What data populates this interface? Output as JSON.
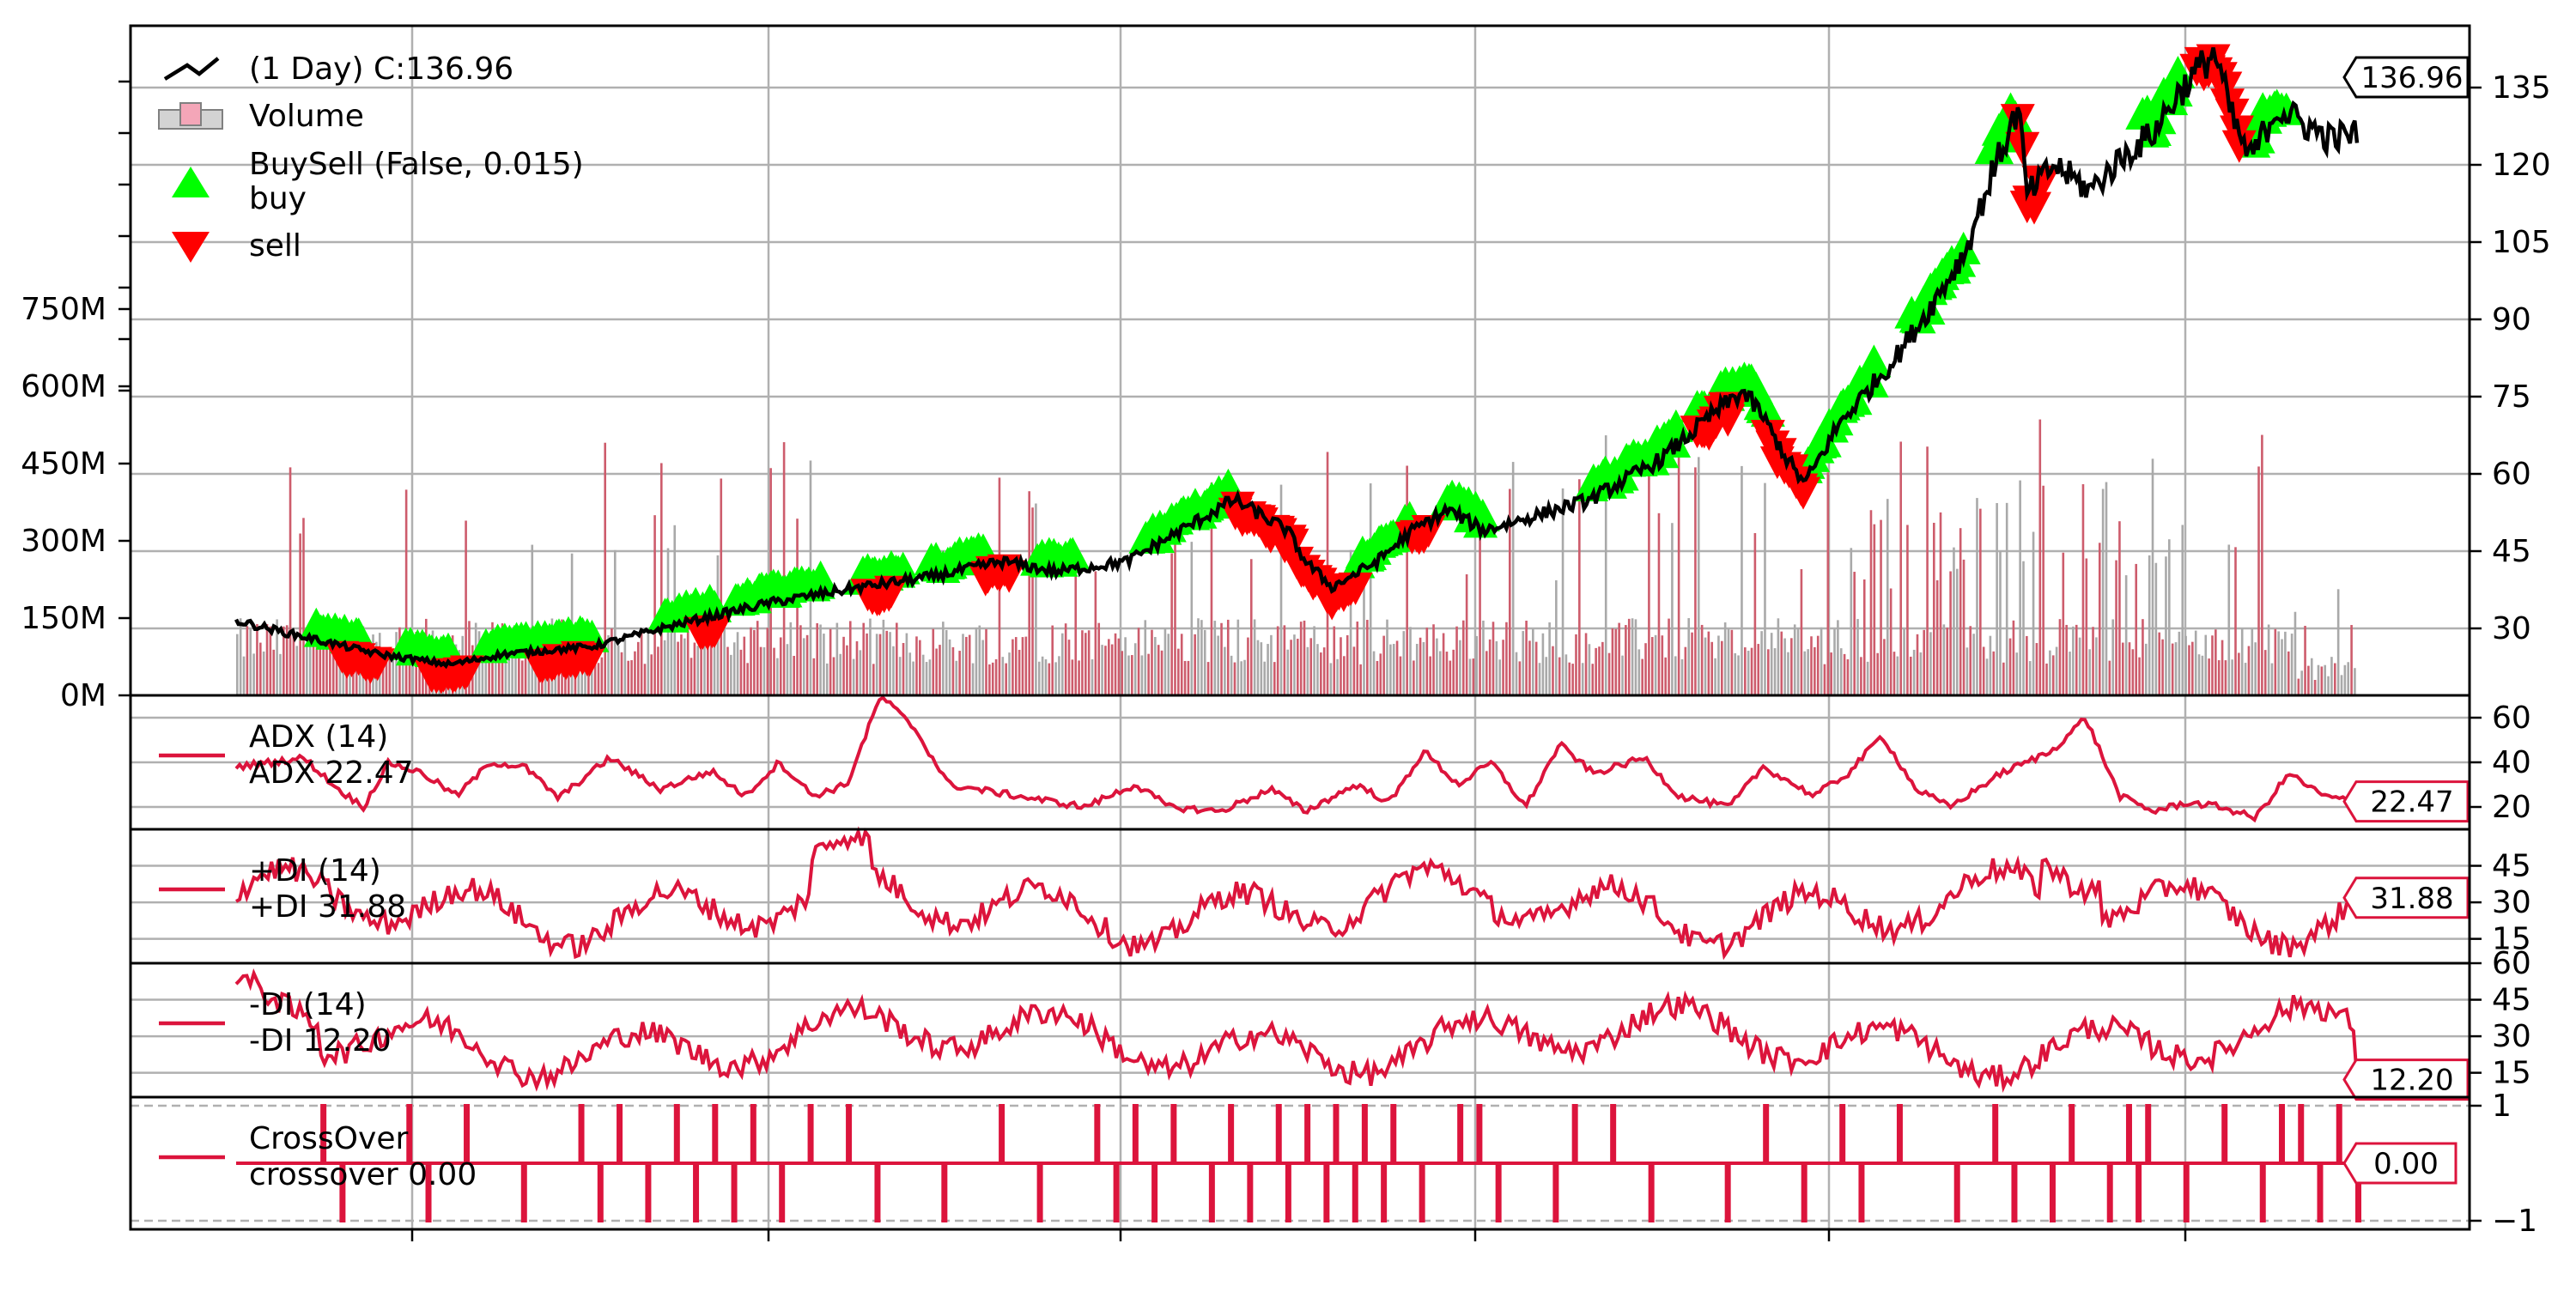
{
  "chart_data": [
    {
      "type": "line",
      "panel": "price",
      "title": "",
      "legend": [
        {
          "icon": "line-swatch-icon",
          "label": "(1 Day) C:136.96"
        },
        {
          "icon": "bar-swatch-icon",
          "label": "Volume"
        },
        {
          "icon": "",
          "label": "BuySell (False, 0.015)"
        },
        {
          "icon": "up-triangle-icon",
          "label": "buy"
        },
        {
          "icon": "down-triangle-icon",
          "label": "sell"
        }
      ],
      "legend_position": "top-left",
      "last_value_label": "136.96",
      "ylim": [
        17,
        147
      ],
      "y_ticks": [
        30,
        45,
        60,
        75,
        90,
        105,
        120,
        135
      ],
      "volume_ylim": [
        0,
        1300
      ],
      "volume_ticks": [
        "0M",
        "150M",
        "300M",
        "450M",
        "600M",
        "750M"
      ],
      "volume_tick_values": [
        0,
        150,
        300,
        450,
        600,
        750
      ],
      "x_range": [
        0,
        1000
      ],
      "close_anchors": [
        {
          "x": 0,
          "y": 31.5
        },
        {
          "x": 30,
          "y": 29
        },
        {
          "x": 80,
          "y": 25
        },
        {
          "x": 120,
          "y": 23
        },
        {
          "x": 150,
          "y": 25
        },
        {
          "x": 200,
          "y": 26.5
        },
        {
          "x": 250,
          "y": 31
        },
        {
          "x": 300,
          "y": 35
        },
        {
          "x": 350,
          "y": 38
        },
        {
          "x": 390,
          "y": 40
        },
        {
          "x": 430,
          "y": 43
        },
        {
          "x": 460,
          "y": 41
        },
        {
          "x": 500,
          "y": 43
        },
        {
          "x": 530,
          "y": 49
        },
        {
          "x": 550,
          "y": 53
        },
        {
          "x": 560,
          "y": 55
        },
        {
          "x": 590,
          "y": 49
        },
        {
          "x": 600,
          "y": 43
        },
        {
          "x": 615,
          "y": 38
        },
        {
          "x": 640,
          "y": 43
        },
        {
          "x": 660,
          "y": 49
        },
        {
          "x": 680,
          "y": 53
        },
        {
          "x": 700,
          "y": 49
        },
        {
          "x": 720,
          "y": 51
        },
        {
          "x": 760,
          "y": 55
        },
        {
          "x": 800,
          "y": 63
        },
        {
          "x": 830,
          "y": 72
        },
        {
          "x": 845,
          "y": 76
        },
        {
          "x": 855,
          "y": 72
        },
        {
          "x": 870,
          "y": 63
        },
        {
          "x": 880,
          "y": 58
        },
        {
          "x": 890,
          "y": 64
        },
        {
          "x": 900,
          "y": 70
        },
        {
          "x": 930,
          "y": 82
        },
        {
          "x": 950,
          "y": 92
        },
        {
          "x": 970,
          "y": 103
        },
        {
          "x": 985,
          "y": 118
        },
        {
          "x": 1000,
          "y": 131
        },
        {
          "x": 1005,
          "y": 114
        },
        {
          "x": 1020,
          "y": 120
        },
        {
          "x": 1040,
          "y": 115
        },
        {
          "x": 1060,
          "y": 122
        },
        {
          "x": 1075,
          "y": 126
        },
        {
          "x": 1090,
          "y": 134
        },
        {
          "x": 1110,
          "y": 142
        },
        {
          "x": 1120,
          "y": 129
        },
        {
          "x": 1130,
          "y": 121
        },
        {
          "x": 1145,
          "y": 131
        },
        {
          "x": 1160,
          "y": 128
        },
        {
          "x": 1175,
          "y": 125
        },
        {
          "x": 1190,
          "y": 126
        },
        {
          "x": 1000,
          "y": 137
        }
      ],
      "buy_segments": [
        [
          45,
          70
        ],
        [
          95,
          120
        ],
        [
          140,
          200
        ],
        [
          240,
          270
        ],
        [
          280,
          330
        ],
        [
          350,
          375
        ],
        [
          390,
          420
        ],
        [
          450,
          470
        ],
        [
          510,
          560
        ],
        [
          630,
          660
        ],
        [
          680,
          700
        ],
        [
          760,
          810
        ],
        [
          820,
          860
        ],
        [
          880,
          920
        ],
        [
          940,
          970
        ],
        [
          985,
          1000
        ],
        [
          1070,
          1090
        ],
        [
          1130,
          1150
        ]
      ],
      "sell_segments": [
        [
          60,
          80
        ],
        [
          110,
          130
        ],
        [
          170,
          200
        ],
        [
          260,
          270
        ],
        [
          355,
          370
        ],
        [
          420,
          435
        ],
        [
          560,
          630
        ],
        [
          660,
          670
        ],
        [
          820,
          840
        ],
        [
          860,
          880
        ],
        [
          1000,
          1015
        ],
        [
          1100,
          1125
        ]
      ]
    },
    {
      "type": "line",
      "panel": "adx",
      "series": [
        {
          "name": "ADX (14)"
        }
      ],
      "legend": [
        "ADX (14)",
        "ADX 22.47"
      ],
      "ylim": [
        10,
        70
      ],
      "y_ticks": [
        20,
        40,
        60
      ],
      "last_value_label": "22.47",
      "anchors": [
        {
          "x": 0,
          "y": 38
        },
        {
          "x": 40,
          "y": 42
        },
        {
          "x": 60,
          "y": 28
        },
        {
          "x": 75,
          "y": 20
        },
        {
          "x": 90,
          "y": 40
        },
        {
          "x": 110,
          "y": 35
        },
        {
          "x": 130,
          "y": 25
        },
        {
          "x": 150,
          "y": 40
        },
        {
          "x": 170,
          "y": 38
        },
        {
          "x": 190,
          "y": 24
        },
        {
          "x": 220,
          "y": 42
        },
        {
          "x": 250,
          "y": 28
        },
        {
          "x": 280,
          "y": 36
        },
        {
          "x": 300,
          "y": 25
        },
        {
          "x": 320,
          "y": 40
        },
        {
          "x": 340,
          "y": 25
        },
        {
          "x": 360,
          "y": 30
        },
        {
          "x": 380,
          "y": 70
        },
        {
          "x": 400,
          "y": 55
        },
        {
          "x": 420,
          "y": 30
        },
        {
          "x": 460,
          "y": 25
        },
        {
          "x": 500,
          "y": 20
        },
        {
          "x": 530,
          "y": 30
        },
        {
          "x": 550,
          "y": 20
        },
        {
          "x": 580,
          "y": 18
        },
        {
          "x": 610,
          "y": 28
        },
        {
          "x": 630,
          "y": 18
        },
        {
          "x": 660,
          "y": 30
        },
        {
          "x": 680,
          "y": 22
        },
        {
          "x": 700,
          "y": 45
        },
        {
          "x": 720,
          "y": 30
        },
        {
          "x": 740,
          "y": 40
        },
        {
          "x": 760,
          "y": 20
        },
        {
          "x": 780,
          "y": 48
        },
        {
          "x": 800,
          "y": 35
        },
        {
          "x": 830,
          "y": 42
        },
        {
          "x": 850,
          "y": 25
        },
        {
          "x": 880,
          "y": 20
        },
        {
          "x": 900,
          "y": 38
        },
        {
          "x": 930,
          "y": 25
        },
        {
          "x": 950,
          "y": 35
        },
        {
          "x": 970,
          "y": 52
        },
        {
          "x": 990,
          "y": 28
        },
        {
          "x": 1010,
          "y": 20
        },
        {
          "x": 1040,
          "y": 35
        },
        {
          "x": 1070,
          "y": 45
        },
        {
          "x": 1090,
          "y": 60
        },
        {
          "x": 1110,
          "y": 25
        },
        {
          "x": 1130,
          "y": 18
        },
        {
          "x": 1150,
          "y": 22
        },
        {
          "x": 1170,
          "y": 20
        },
        {
          "x": 1190,
          "y": 15
        },
        {
          "x": 1210,
          "y": 35
        },
        {
          "x": 1230,
          "y": 25
        },
        {
          "x": 1250,
          "y": 22
        },
        {
          "x": 1000,
          "y": 22.47
        }
      ]
    },
    {
      "type": "line",
      "panel": "plus-di",
      "series": [
        {
          "name": "+DI (14)"
        }
      ],
      "legend": [
        "+DI (14)",
        "+DI 31.88"
      ],
      "ylim": [
        5,
        60
      ],
      "y_ticks": [
        15,
        30,
        45
      ],
      "last_value_label": "31.88"
    },
    {
      "type": "line",
      "panel": "minus-di",
      "series": [
        {
          "name": "-DI (14)"
        }
      ],
      "legend": [
        "-DI (14)",
        "-DI 12.20"
      ],
      "ylim": [
        5,
        60
      ],
      "y_ticks": [
        15,
        30,
        45,
        60
      ],
      "last_value_label": "12.20"
    },
    {
      "type": "line",
      "panel": "crossover",
      "series": [
        {
          "name": "CrossOver"
        }
      ],
      "legend": [
        "CrossOver",
        "crossover 0.00"
      ],
      "ylim": [
        -1,
        1
      ],
      "y_ticks": [
        -1,
        1
      ],
      "y_tick_labels": [
        "−1",
        "1"
      ],
      "last_value_label": "0.00",
      "up_spikes": [
        45,
        90,
        120,
        180,
        200,
        230,
        250,
        270,
        300,
        320,
        400,
        450,
        470,
        490,
        520,
        545,
        560,
        575,
        590,
        605,
        640,
        650,
        700,
        720,
        800,
        840,
        870,
        920,
        960,
        990,
        1000,
        1040,
        1070,
        1080,
        1100
      ],
      "down_spikes": [
        55,
        100,
        150,
        190,
        215,
        240,
        260,
        285,
        335,
        370,
        420,
        460,
        480,
        510,
        530,
        550,
        570,
        585,
        600,
        620,
        660,
        690,
        740,
        780,
        820,
        850,
        900,
        930,
        950,
        980,
        995,
        1020,
        1060,
        1090,
        1110
      ]
    }
  ],
  "colors": {
    "price_line": "#000000",
    "indicator_line": "#dc143c",
    "buy": "#00ff00",
    "sell": "#ff0000",
    "volume_up": "#cd5c6c",
    "volume_down": "#a9a9a9",
    "grid": "#b0b0b0"
  }
}
